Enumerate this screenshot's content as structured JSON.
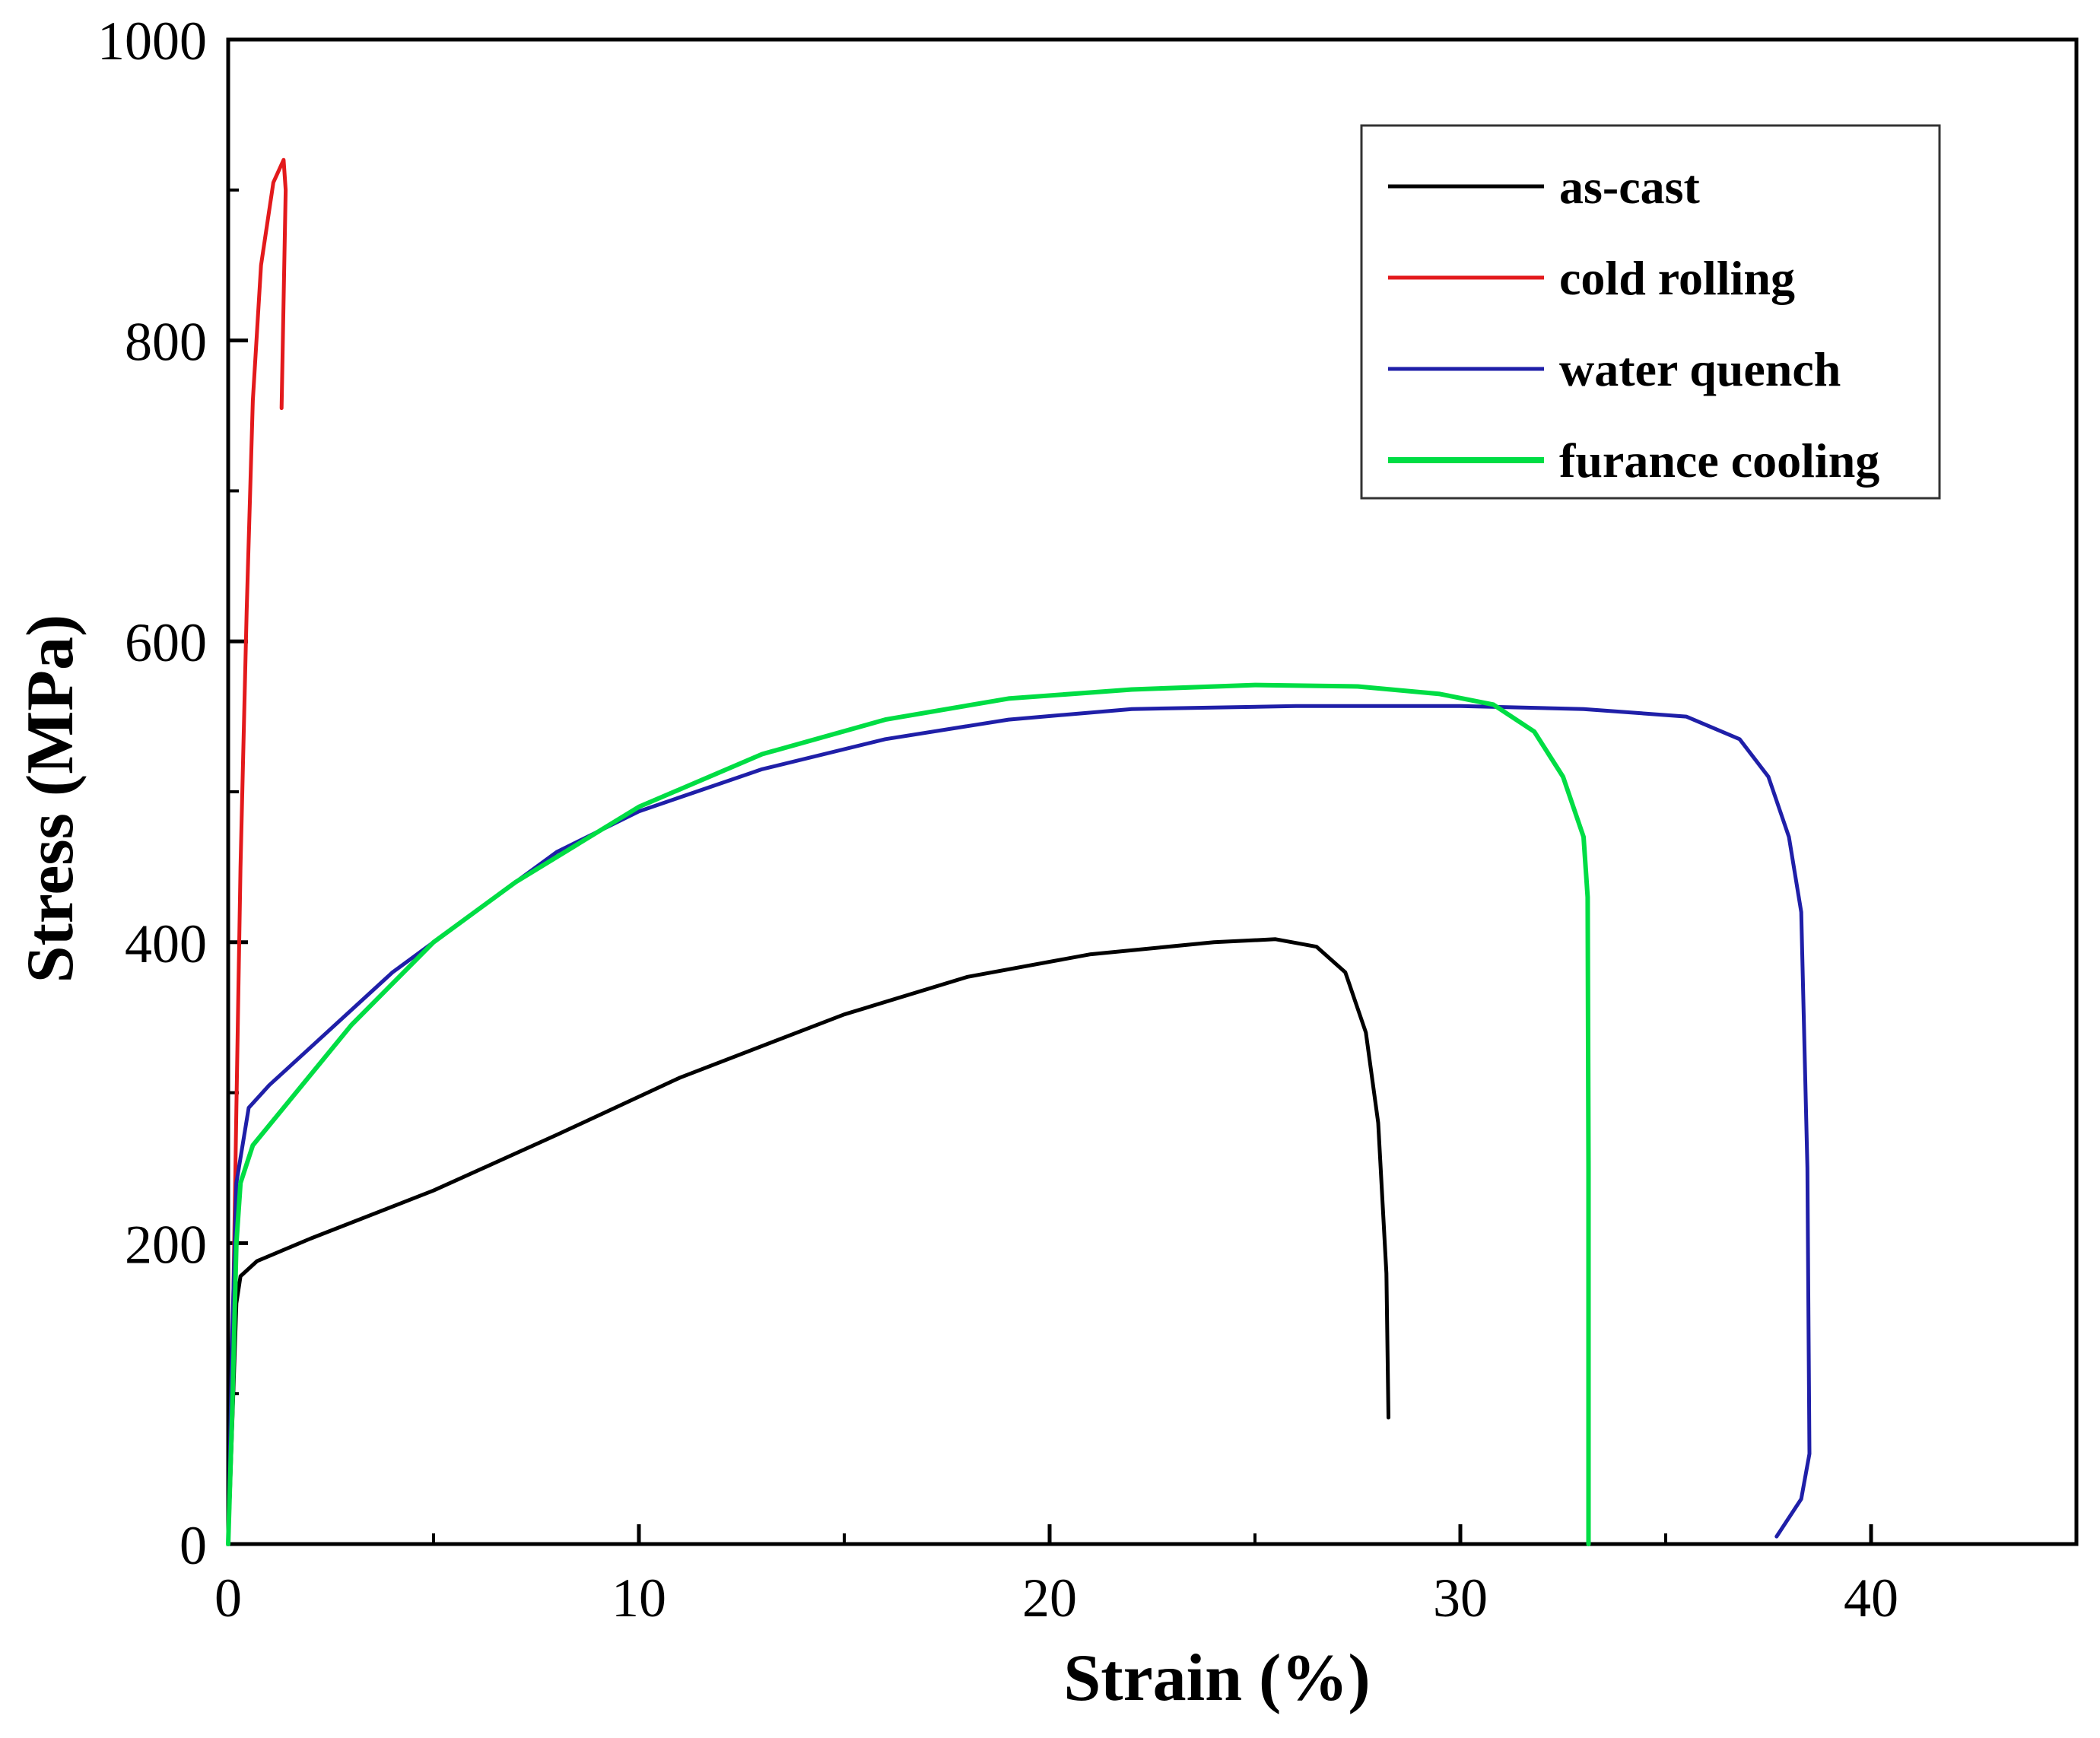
{
  "chart_data": {
    "type": "line",
    "xlabel": "Strain (%)",
    "ylabel": "Stress (MPa)",
    "xlim": [
      0,
      45
    ],
    "ylim": [
      0,
      1000
    ],
    "x_ticks": [
      0,
      10,
      20,
      30,
      40
    ],
    "y_ticks": [
      0,
      200,
      400,
      600,
      800,
      1000
    ],
    "x_tick_labels": [
      "0",
      "10",
      "20",
      "30",
      "40"
    ],
    "y_tick_labels": [
      "0",
      "200",
      "400",
      "600",
      "800",
      "1000"
    ],
    "legend_position": "top-right",
    "series": [
      {
        "name": "as-cast",
        "color": "#000000",
        "points": [
          [
            0,
            0
          ],
          [
            0.1,
            80
          ],
          [
            0.2,
            160
          ],
          [
            0.3,
            178
          ],
          [
            0.7,
            188
          ],
          [
            2,
            203
          ],
          [
            5,
            235
          ],
          [
            8,
            272
          ],
          [
            11,
            310
          ],
          [
            15,
            352
          ],
          [
            18,
            377
          ],
          [
            21,
            392
          ],
          [
            24,
            400
          ],
          [
            25.5,
            402
          ],
          [
            26.5,
            397
          ],
          [
            27.2,
            380
          ],
          [
            27.7,
            340
          ],
          [
            28.0,
            280
          ],
          [
            28.2,
            180
          ],
          [
            28.25,
            84
          ]
        ]
      },
      {
        "name": "cold rolling",
        "color": "#e31a1c",
        "points": [
          [
            0,
            0
          ],
          [
            0.1,
            120
          ],
          [
            0.2,
            290
          ],
          [
            0.3,
            450
          ],
          [
            0.45,
            620
          ],
          [
            0.6,
            760
          ],
          [
            0.8,
            850
          ],
          [
            1.1,
            905
          ],
          [
            1.35,
            920
          ],
          [
            1.4,
            900
          ],
          [
            1.3,
            755
          ]
        ]
      },
      {
        "name": "water quench",
        "color": "#1f1fa8",
        "points": [
          [
            0,
            0
          ],
          [
            0.1,
            140
          ],
          [
            0.2,
            240
          ],
          [
            0.5,
            290
          ],
          [
            1,
            305
          ],
          [
            2,
            330
          ],
          [
            4,
            380
          ],
          [
            6,
            420
          ],
          [
            8,
            460
          ],
          [
            10,
            487
          ],
          [
            13,
            515
          ],
          [
            16,
            535
          ],
          [
            19,
            548
          ],
          [
            22,
            555
          ],
          [
            26,
            557
          ],
          [
            30,
            557
          ],
          [
            33,
            555
          ],
          [
            35.5,
            550
          ],
          [
            36.8,
            535
          ],
          [
            37.5,
            510
          ],
          [
            38.0,
            470
          ],
          [
            38.3,
            420
          ],
          [
            38.45,
            250
          ],
          [
            38.5,
            60
          ],
          [
            38.3,
            30
          ],
          [
            37.7,
            5
          ]
        ]
      },
      {
        "name": "furance cooling",
        "color": "#00dd44",
        "points": [
          [
            0,
            0
          ],
          [
            0.1,
            90
          ],
          [
            0.2,
            200
          ],
          [
            0.3,
            240
          ],
          [
            0.6,
            265
          ],
          [
            1.5,
            295
          ],
          [
            3,
            345
          ],
          [
            5,
            400
          ],
          [
            7,
            440
          ],
          [
            10,
            490
          ],
          [
            13,
            525
          ],
          [
            16,
            548
          ],
          [
            19,
            562
          ],
          [
            22,
            568
          ],
          [
            25,
            571
          ],
          [
            27.5,
            570
          ],
          [
            29.5,
            565
          ],
          [
            30.8,
            558
          ],
          [
            31.8,
            540
          ],
          [
            32.5,
            510
          ],
          [
            33.0,
            470
          ],
          [
            33.1,
            430
          ],
          [
            33.12,
            250
          ],
          [
            33.12,
            0
          ]
        ]
      }
    ]
  }
}
